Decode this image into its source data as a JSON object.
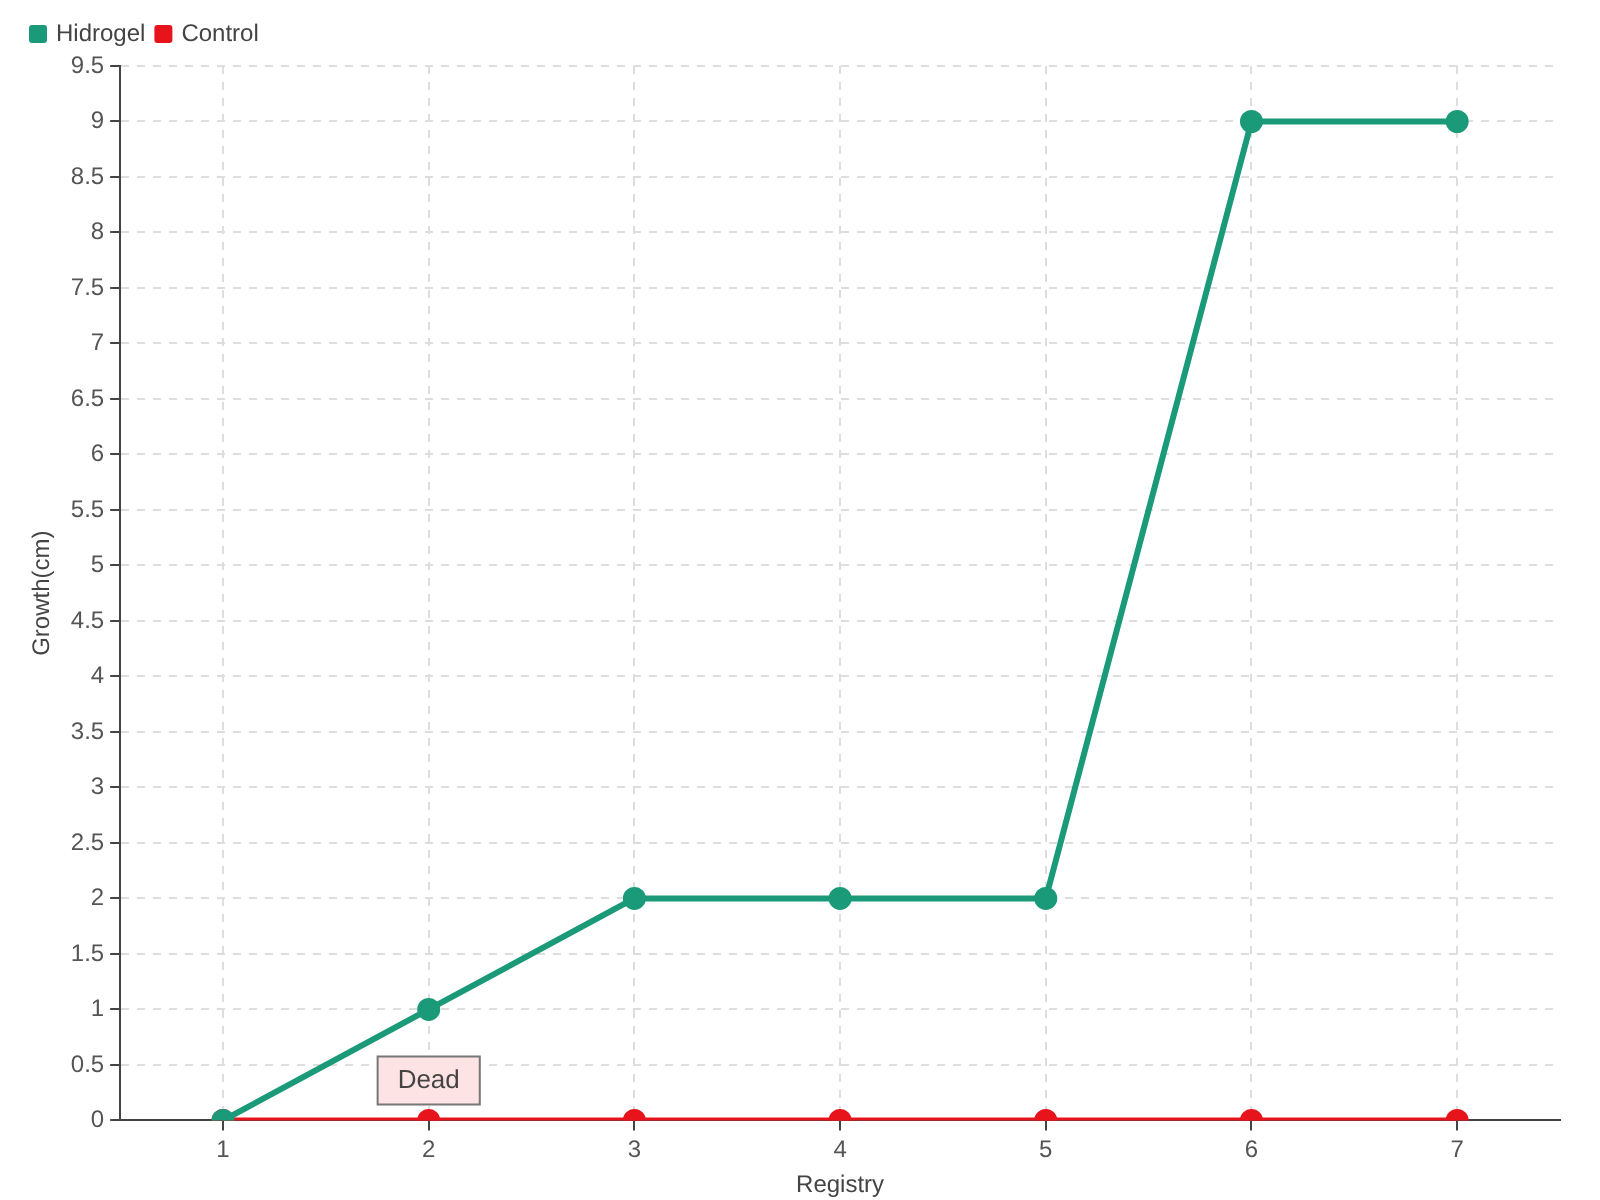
{
  "chart_data": {
    "type": "line",
    "xlabel": "Registry",
    "ylabel": "Growth(cm)",
    "categories": [
      "1",
      "2",
      "3",
      "4",
      "5",
      "6",
      "7"
    ],
    "series": [
      {
        "name": "Hidrogel",
        "color": "#1a9a78",
        "values": [
          0,
          1,
          2,
          2,
          2,
          9,
          9
        ]
      },
      {
        "name": "Control",
        "color": "#e8141c",
        "values": [
          0,
          0,
          0,
          0,
          0,
          0,
          0
        ]
      }
    ],
    "ylim": [
      0,
      9.5
    ],
    "yticks": [
      0,
      0.5,
      1,
      1.5,
      2,
      2.5,
      3,
      3.5,
      4,
      4.5,
      5,
      5.5,
      6,
      6.5,
      7,
      7.5,
      8,
      8.5,
      9,
      9.5
    ],
    "annotations": [
      {
        "text": "Dead",
        "x": "2",
        "y": 0
      }
    ],
    "grid": true,
    "legend": "top left",
    "marker": "circle",
    "line_style": "solid"
  }
}
